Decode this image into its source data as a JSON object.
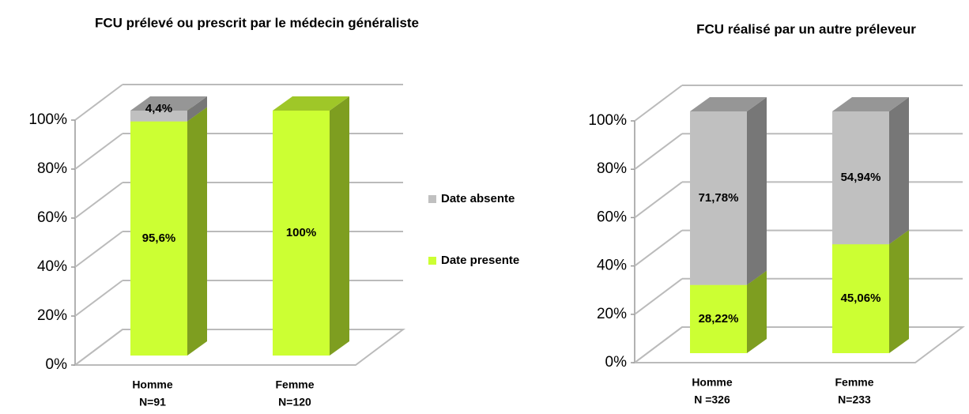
{
  "chart_data": [
    {
      "type": "bar3d_stacked",
      "title": "FCU prélevé ou prescrit par le médecin généraliste",
      "categories": [
        [
          "Homme",
          "N=91"
        ],
        [
          "Femme",
          "N=120"
        ]
      ],
      "series": [
        {
          "name": "Date presente",
          "color": "#ccff33",
          "values": [
            95.6,
            100
          ],
          "value_labels": [
            "95,6%",
            "100%"
          ]
        },
        {
          "name": "Date absente",
          "color": "#c0c0c0",
          "values": [
            4.4,
            0
          ],
          "value_labels": [
            "4,4%",
            null
          ]
        }
      ],
      "ylim": [
        0,
        100
      ],
      "yticks": [
        {
          "value": 0,
          "label": "0%"
        },
        {
          "value": 20,
          "label": "20%"
        },
        {
          "value": 40,
          "label": "40%"
        },
        {
          "value": 60,
          "label": "60%"
        },
        {
          "value": 80,
          "label": "80%"
        },
        {
          "value": 100,
          "label": "100%"
        }
      ],
      "grid": true,
      "legend": true
    },
    {
      "type": "bar3d_stacked",
      "title": "FCU réalisé par un autre préleveur",
      "categories": [
        [
          "Homme",
          "N =326"
        ],
        [
          "Femme",
          "N=233"
        ]
      ],
      "series": [
        {
          "name": "Date presente",
          "color": "#ccff33",
          "values": [
            28.22,
            45.06
          ],
          "value_labels": [
            "28,22%",
            "45,06%"
          ]
        },
        {
          "name": "Date absente",
          "color": "#c0c0c0",
          "values": [
            71.78,
            54.94
          ],
          "value_labels": [
            "71,78%",
            "54,94%"
          ]
        }
      ],
      "ylim": [
        0,
        100
      ],
      "yticks": [
        {
          "value": 0,
          "label": "0%"
        },
        {
          "value": 20,
          "label": "20%"
        },
        {
          "value": 40,
          "label": "40%"
        },
        {
          "value": 60,
          "label": "60%"
        },
        {
          "value": 80,
          "label": "80%"
        },
        {
          "value": 100,
          "label": "100%"
        }
      ],
      "grid": true,
      "legend": false
    }
  ]
}
